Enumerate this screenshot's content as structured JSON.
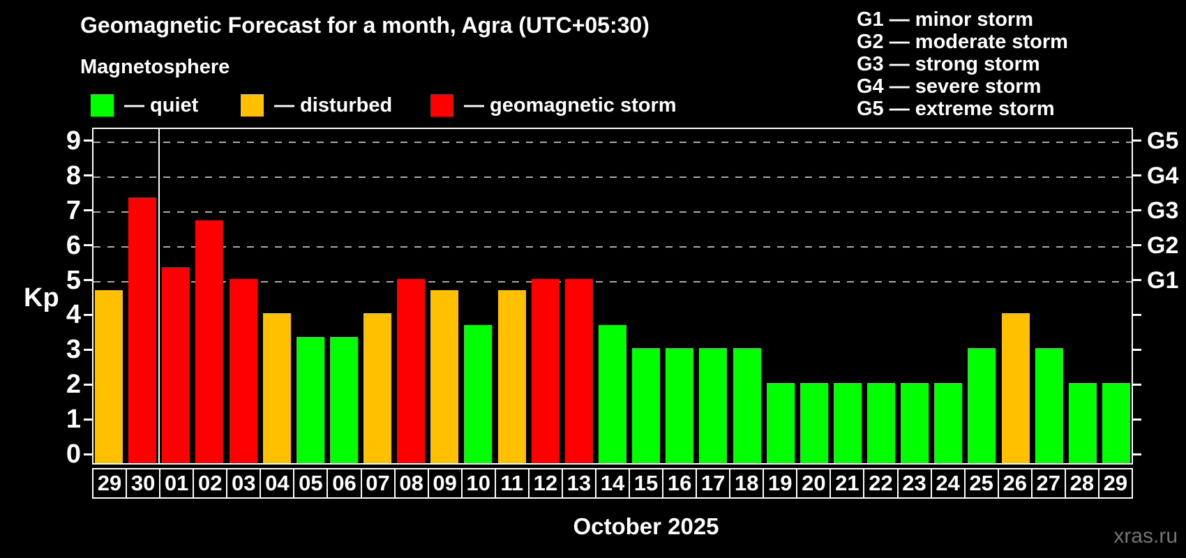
{
  "title": "Geomagnetic Forecast for a month, Agra (UTC+05:30)",
  "subtitle": "Magnetosphere",
  "legend": {
    "items": [
      {
        "key": "quiet",
        "label": "— quiet",
        "color": "#00ff00",
        "x": 130
      },
      {
        "key": "disturbed",
        "label": "— disturbed",
        "color": "#ffc000",
        "x": 345
      },
      {
        "key": "storm",
        "label": "— geomagnetic storm",
        "color": "#ff0000",
        "x": 617
      }
    ]
  },
  "g_legend": {
    "items": [
      {
        "label": "G1 — minor storm"
      },
      {
        "label": "G2 — moderate storm"
      },
      {
        "label": "G3 — strong storm"
      },
      {
        "label": "G4 — severe storm"
      },
      {
        "label": "G5 — extreme storm"
      }
    ]
  },
  "axis": {
    "kp_label": "Kp",
    "y_ticks": [
      0,
      1,
      2,
      3,
      4,
      5,
      6,
      7,
      8,
      9
    ],
    "right_labels": [
      {
        "label": "G1",
        "kp": 5
      },
      {
        "label": "G2",
        "kp": 6
      },
      {
        "label": "G3",
        "kp": 7
      },
      {
        "label": "G4",
        "kp": 8
      },
      {
        "label": "G5",
        "kp": 9
      }
    ],
    "gridlines_kp": [
      5,
      6,
      7,
      8,
      9
    ]
  },
  "xlabel": "October 2025",
  "watermark": "xras.ru",
  "colors": {
    "quiet": "#00ff00",
    "disturbed": "#ffc000",
    "storm": "#ff0000",
    "grid": "#aaaaaa",
    "frame": "#ffffff",
    "background": "#000000",
    "watermark": "#757575"
  },
  "chart_data": {
    "type": "bar",
    "title": "Geomagnetic Forecast for a month, Agra (UTC+05:30)",
    "xlabel": "October 2025",
    "ylabel": "Kp",
    "ylim": [
      0,
      9
    ],
    "grid": "dashed horizontal at Kp 5-9 (G1-G5)",
    "legend_position": "top",
    "month_boundary_after_index": 1,
    "categories": [
      "29",
      "30",
      "01",
      "02",
      "03",
      "04",
      "05",
      "06",
      "07",
      "08",
      "09",
      "10",
      "11",
      "12",
      "13",
      "14",
      "15",
      "16",
      "17",
      "18",
      "19",
      "20",
      "21",
      "22",
      "23",
      "24",
      "25",
      "26",
      "27",
      "28",
      "29"
    ],
    "values": [
      4.67,
      7.33,
      5.33,
      6.67,
      5.0,
      4.0,
      3.33,
      3.33,
      4.0,
      5.0,
      4.67,
      3.67,
      4.67,
      5.0,
      5.0,
      3.67,
      3.0,
      3.0,
      3.0,
      3.0,
      2.0,
      2.0,
      2.0,
      2.0,
      2.0,
      2.0,
      3.0,
      4.0,
      3.0,
      2.0,
      2.0
    ],
    "statuses": [
      "disturbed",
      "storm",
      "storm",
      "storm",
      "storm",
      "disturbed",
      "quiet",
      "quiet",
      "disturbed",
      "storm",
      "disturbed",
      "quiet",
      "disturbed",
      "storm",
      "storm",
      "quiet",
      "quiet",
      "quiet",
      "quiet",
      "quiet",
      "quiet",
      "quiet",
      "quiet",
      "quiet",
      "quiet",
      "quiet",
      "quiet",
      "disturbed",
      "quiet",
      "quiet",
      "quiet"
    ]
  }
}
